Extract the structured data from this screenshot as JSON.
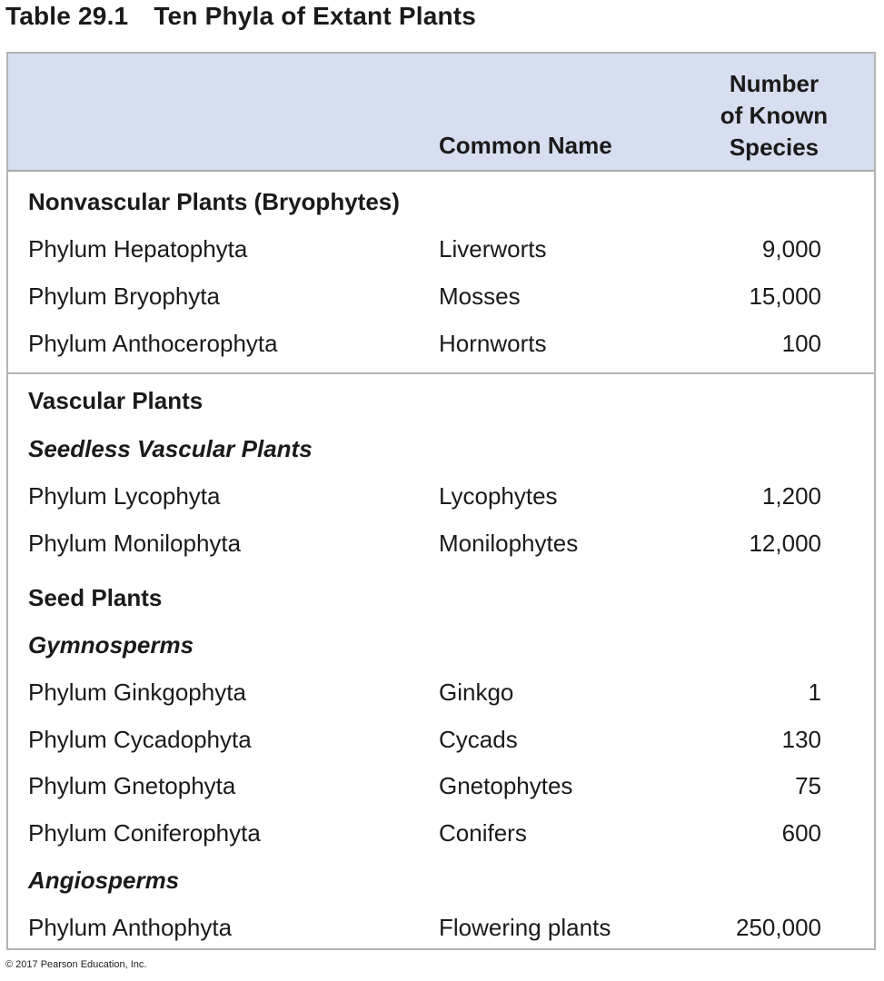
{
  "title": {
    "number": "Table 29.1",
    "text": "Ten Phyla of Extant Plants"
  },
  "header": {
    "common_name": "Common Name",
    "species_lines": [
      "Number",
      "of Known",
      "Species"
    ]
  },
  "rows": [
    {
      "kind": "group",
      "name": "Nonvascular Plants (Bryophytes)",
      "common": "",
      "count": ""
    },
    {
      "kind": "item",
      "name": "Phylum Hepatophyta",
      "common": "Liverworts",
      "count": "9,000"
    },
    {
      "kind": "item",
      "name": "Phylum Bryophyta",
      "common": "Mosses",
      "count": "15,000"
    },
    {
      "kind": "item",
      "name": "Phylum Anthocerophyta",
      "common": "Hornworts",
      "count": "100"
    },
    {
      "kind": "group",
      "name": "Vascular Plants",
      "common": "",
      "count": ""
    },
    {
      "kind": "subgroup",
      "name": "Seedless Vascular Plants",
      "common": "",
      "count": ""
    },
    {
      "kind": "item",
      "name": "Phylum Lycophyta",
      "common": "Lycophytes",
      "count": "1,200"
    },
    {
      "kind": "item",
      "name": "Phylum Monilophyta",
      "common": "Monilophytes",
      "count": "12,000"
    },
    {
      "kind": "group",
      "name": "Seed Plants",
      "common": "",
      "count": ""
    },
    {
      "kind": "subgroup",
      "name": "Gymnosperms",
      "common": "",
      "count": ""
    },
    {
      "kind": "item",
      "name": "Phylum Ginkgophyta",
      "common": "Ginkgo",
      "count": "1"
    },
    {
      "kind": "item",
      "name": "Phylum Cycadophyta",
      "common": "Cycads",
      "count": "130"
    },
    {
      "kind": "item",
      "name": "Phylum Gnetophyta",
      "common": "Gnetophytes",
      "count": "75"
    },
    {
      "kind": "item",
      "name": "Phylum Coniferophyta",
      "common": "Conifers",
      "count": "600"
    },
    {
      "kind": "subgroup",
      "name": "Angiosperms",
      "common": "",
      "count": ""
    },
    {
      "kind": "item",
      "name": "Phylum Anthophyta",
      "common": "Flowering plants",
      "count": "250,000"
    }
  ],
  "copyright": "© 2017 Pearson Education, Inc.",
  "colors": {
    "header_bg": "#d6deef",
    "border": "#b3b3b3"
  }
}
